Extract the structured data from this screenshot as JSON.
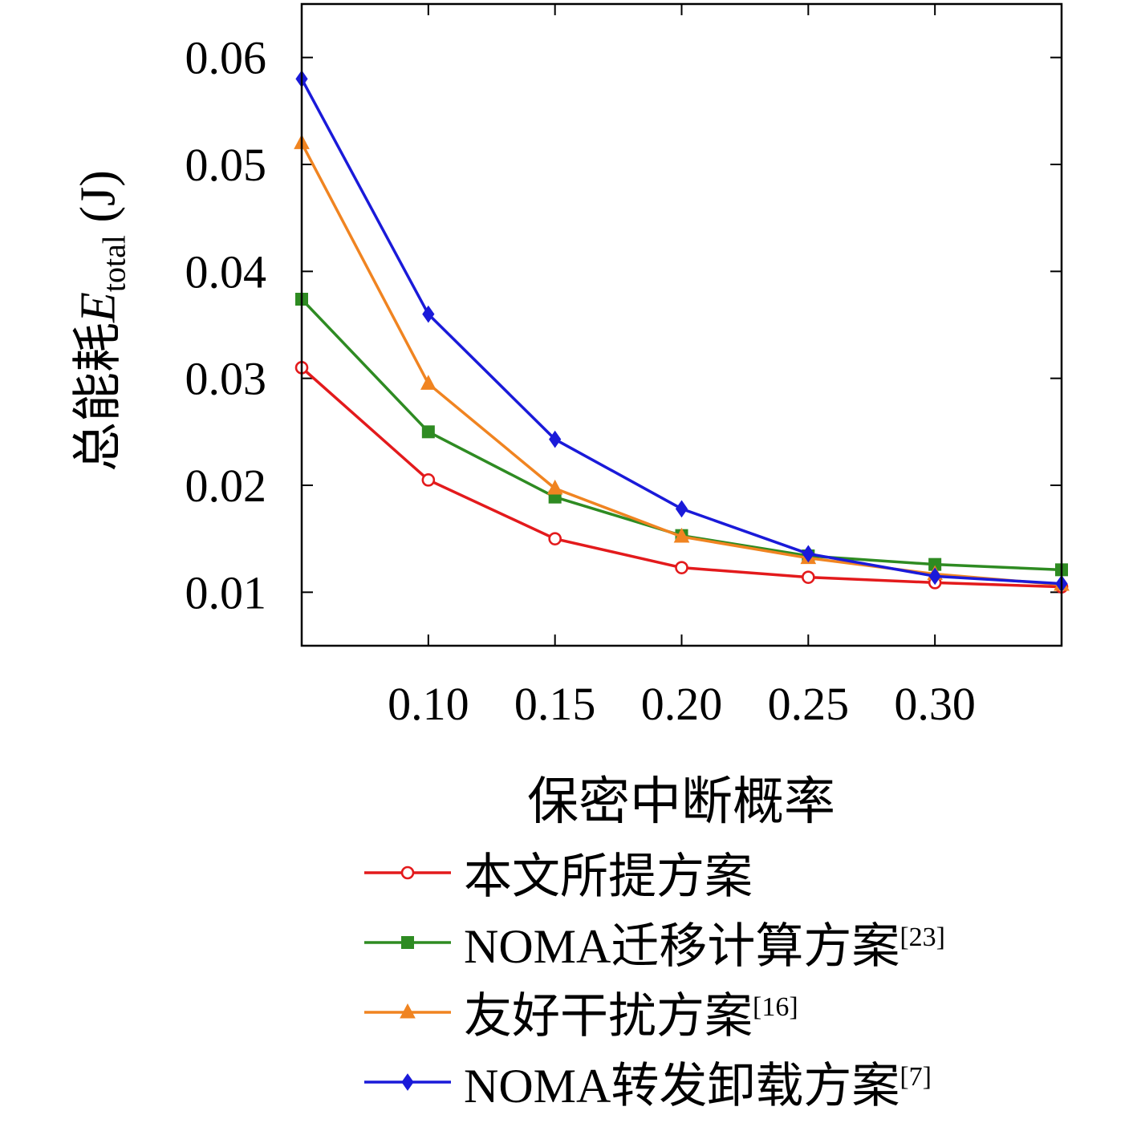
{
  "chart_data": {
    "type": "line",
    "x": [
      0.05,
      0.1,
      0.15,
      0.2,
      0.25,
      0.3,
      0.35
    ],
    "series": [
      {
        "name": "本文所提方案",
        "sup": "",
        "color": "#e31a1c",
        "marker": "circle-open",
        "values": [
          0.031,
          0.0205,
          0.015,
          0.0123,
          0.0114,
          0.0109,
          0.0105
        ]
      },
      {
        "name": "NOMA迁移计算方案",
        "sup": "[23]",
        "color": "#2e8b22",
        "marker": "square",
        "values": [
          0.0374,
          0.025,
          0.0189,
          0.0153,
          0.0134,
          0.0126,
          0.0121
        ]
      },
      {
        "name": "友好干扰方案",
        "sup": "[16]",
        "color": "#f08421",
        "marker": "triangle",
        "values": [
          0.052,
          0.0295,
          0.0197,
          0.0152,
          0.0132,
          0.0117,
          0.0107
        ]
      },
      {
        "name": "NOMA转发卸载方案",
        "sup": "[7]",
        "color": "#1a1ad9",
        "marker": "diamond",
        "values": [
          0.058,
          0.036,
          0.0243,
          0.0178,
          0.0136,
          0.0115,
          0.0108
        ]
      }
    ],
    "xlabel": "保密中断概率",
    "ylabel_prefix": "总能耗",
    "ylabel_var": "E",
    "ylabel_sub": "total",
    "ylabel_unit": " (J)",
    "xticks": [
      0.1,
      0.15,
      0.2,
      0.25,
      0.3
    ],
    "xtick_labels": [
      "0.10",
      "0.15",
      "0.20",
      "0.25",
      "0.30"
    ],
    "yticks": [
      0.01,
      0.02,
      0.03,
      0.04,
      0.05,
      0.06
    ],
    "ytick_labels": [
      "0.01",
      "0.02",
      "0.03",
      "0.04",
      "0.05",
      "0.06"
    ],
    "xlim": [
      0.05,
      0.35
    ],
    "ylim": [
      0.005,
      0.065
    ],
    "grid": false,
    "legend_position": "below"
  }
}
